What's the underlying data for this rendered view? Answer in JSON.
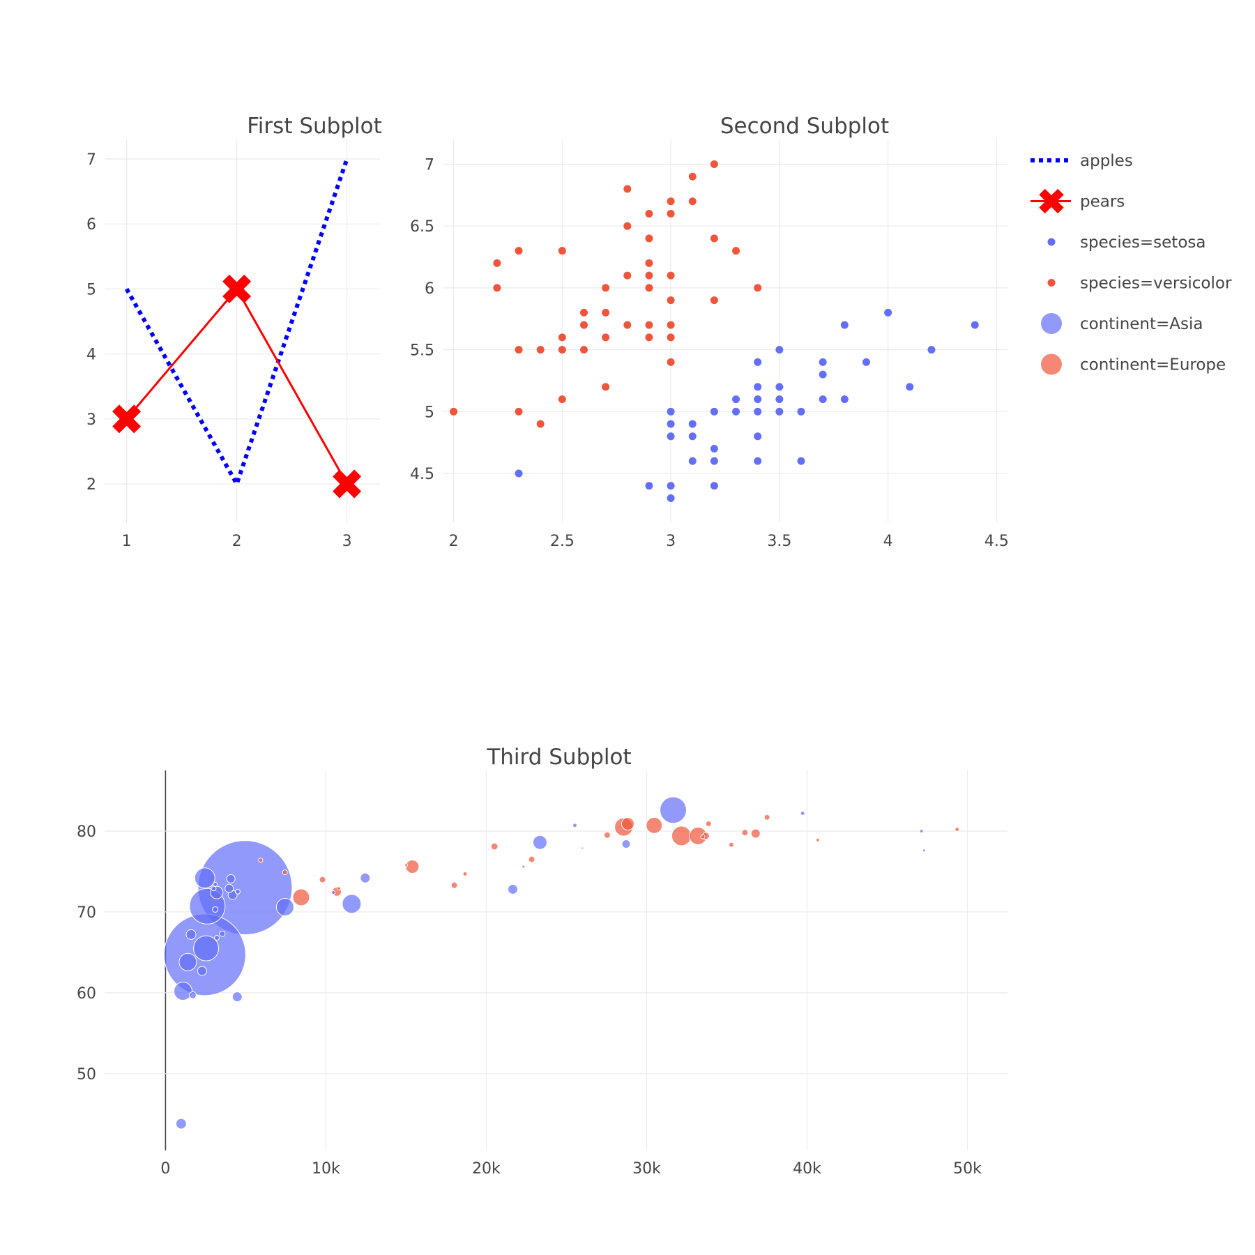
{
  "colors": {
    "apples": "#0000ff",
    "pears": "#ff0000",
    "setosa": "#636efa",
    "versicolor": "#ef553b",
    "asia": "#636efa",
    "europe": "#ef553b"
  },
  "legend": [
    {
      "label": "apples",
      "symbol": "dotted-line",
      "color": "#0000ff"
    },
    {
      "label": "pears",
      "symbol": "line-x",
      "color": "#ff0000"
    },
    {
      "label": "species=setosa",
      "symbol": "dot",
      "color": "#636efa"
    },
    {
      "label": "species=versicolor",
      "symbol": "dot",
      "color": "#ef553b"
    },
    {
      "label": "continent=Asia",
      "symbol": "bubble",
      "color": "#636efa"
    },
    {
      "label": "continent=Europe",
      "symbol": "bubble",
      "color": "#ef553b"
    }
  ],
  "chart_data": [
    {
      "type": "line",
      "title": "First Subplot",
      "xlim": [
        0.8,
        3.3
      ],
      "ylim": [
        1.4,
        7.3
      ],
      "xticks": [
        1,
        2,
        3
      ],
      "yticks": [
        2,
        3,
        4,
        5,
        6,
        7
      ],
      "grid": true,
      "series": [
        {
          "name": "apples",
          "x": [
            1,
            2,
            3
          ],
          "y": [
            5,
            2,
            7
          ],
          "line": "dotted",
          "color": "#0000ff"
        },
        {
          "name": "pears",
          "x": [
            1,
            2,
            3
          ],
          "y": [
            3,
            5,
            2
          ],
          "line": "solid",
          "marker": "x",
          "color": "#ff0000"
        }
      ]
    },
    {
      "type": "scatter",
      "title": "Second Subplot",
      "xlim": [
        1.95,
        4.55
      ],
      "ylim": [
        4.1,
        7.2
      ],
      "xticks": [
        2,
        2.5,
        3,
        3.5,
        4,
        4.5
      ],
      "ytick_labels": [
        "4.5",
        "5",
        "5.5",
        "6",
        "6.5",
        "7"
      ],
      "yticks": [
        4.5,
        5,
        5.5,
        6,
        6.5,
        7
      ],
      "grid": true,
      "series": [
        {
          "name": "species=setosa",
          "color": "#636efa",
          "points": [
            [
              3.5,
              5.5
            ],
            [
              3.4,
              5.4
            ],
            [
              3.4,
              5.2
            ],
            [
              3.5,
              5.2
            ],
            [
              3.4,
              5.1
            ],
            [
              3.5,
              5.1
            ],
            [
              3.3,
              5.1
            ],
            [
              3.7,
              5.4
            ],
            [
              3.7,
              5.3
            ],
            [
              3.7,
              5.1
            ],
            [
              3.8,
              5.1
            ],
            [
              3.8,
              5.7
            ],
            [
              4.0,
              5.8
            ],
            [
              3.9,
              5.4
            ],
            [
              4.1,
              5.2
            ],
            [
              4.2,
              5.5
            ],
            [
              4.4,
              5.7
            ],
            [
              3.0,
              5.0
            ],
            [
              3.2,
              5.0
            ],
            [
              3.3,
              5.0
            ],
            [
              3.4,
              5.0
            ],
            [
              3.5,
              5.0
            ],
            [
              3.6,
              5.0
            ],
            [
              3.0,
              4.9
            ],
            [
              3.1,
              4.9
            ],
            [
              3.0,
              4.8
            ],
            [
              3.1,
              4.8
            ],
            [
              3.4,
              4.8
            ],
            [
              3.2,
              4.7
            ],
            [
              3.1,
              4.6
            ],
            [
              3.2,
              4.6
            ],
            [
              3.4,
              4.6
            ],
            [
              3.6,
              4.6
            ],
            [
              3.2,
              4.4
            ],
            [
              2.9,
              4.4
            ],
            [
              3.0,
              4.4
            ],
            [
              3.0,
              4.3
            ],
            [
              2.3,
              4.5
            ]
          ]
        },
        {
          "name": "species=versicolor",
          "color": "#ef553b",
          "points": [
            [
              3.2,
              7.0
            ],
            [
              3.1,
              6.9
            ],
            [
              3.0,
              6.7
            ],
            [
              3.1,
              6.7
            ],
            [
              2.8,
              6.8
            ],
            [
              2.9,
              6.6
            ],
            [
              3.0,
              6.6
            ],
            [
              2.8,
              6.5
            ],
            [
              2.9,
              6.4
            ],
            [
              3.2,
              6.4
            ],
            [
              3.3,
              6.3
            ],
            [
              2.3,
              6.3
            ],
            [
              2.5,
              6.3
            ],
            [
              2.2,
              6.2
            ],
            [
              2.9,
              6.2
            ],
            [
              2.8,
              6.1
            ],
            [
              2.9,
              6.1
            ],
            [
              3.0,
              6.1
            ],
            [
              2.2,
              6.0
            ],
            [
              2.7,
              6.0
            ],
            [
              2.9,
              6.0
            ],
            [
              3.4,
              6.0
            ],
            [
              3.0,
              5.9
            ],
            [
              3.2,
              5.9
            ],
            [
              2.6,
              5.8
            ],
            [
              2.7,
              5.8
            ],
            [
              2.6,
              5.7
            ],
            [
              2.8,
              5.7
            ],
            [
              2.9,
              5.7
            ],
            [
              3.0,
              5.7
            ],
            [
              2.5,
              5.6
            ],
            [
              2.7,
              5.6
            ],
            [
              2.9,
              5.6
            ],
            [
              3.0,
              5.6
            ],
            [
              2.3,
              5.5
            ],
            [
              2.4,
              5.5
            ],
            [
              2.5,
              5.5
            ],
            [
              2.6,
              5.5
            ],
            [
              3.0,
              5.4
            ],
            [
              2.7,
              5.2
            ],
            [
              2.5,
              5.1
            ],
            [
              2.0,
              5.0
            ],
            [
              2.3,
              5.0
            ],
            [
              2.4,
              4.9
            ]
          ]
        }
      ]
    },
    {
      "type": "scatter",
      "title": "Third Subplot",
      "xlim": [
        -3800,
        52500
      ],
      "ylim": [
        40.5,
        87.5
      ],
      "xticks": [
        0,
        10000,
        20000,
        30000,
        40000,
        50000
      ],
      "xtick_labels": [
        "0",
        "10k",
        "20k",
        "30k",
        "40k",
        "50k"
      ],
      "yticks": [
        50,
        60,
        70,
        80
      ],
      "grid": true,
      "series": [
        {
          "name": "continent=Asia",
          "color": "#636efa",
          "points": [
            [
              4959,
              73.0,
              135
            ],
            [
              2452,
              64.7,
              117
            ],
            [
              31656,
              82.6,
              38
            ],
            [
              1091,
              60.2,
              26
            ],
            [
              2605,
              70.7,
              51
            ],
            [
              2451,
              74.2,
              29
            ],
            [
              1391,
              63.8,
              25
            ],
            [
              2529,
              65.5,
              36
            ],
            [
              11606,
              71.0,
              27
            ],
            [
              7458,
              70.6,
              25
            ],
            [
              4471,
              59.5,
              14
            ],
            [
              975,
              43.8,
              15
            ],
            [
              1593,
              67.2,
              14
            ],
            [
              23348,
              78.6,
              20
            ],
            [
              3190,
              72.4,
              18
            ],
            [
              4185,
              72.1,
              13
            ],
            [
              3970,
              72.9,
              12
            ],
            [
              4073,
              74.1,
              12
            ],
            [
              12452,
              74.2,
              14
            ],
            [
              28718,
              78.4,
              12
            ],
            [
              21655,
              72.8,
              14
            ],
            [
              1700,
              59.7,
              10
            ],
            [
              2280,
              62.7,
              13
            ],
            [
              3540,
              67.3,
              8
            ],
            [
              3100,
              70.3,
              8
            ],
            [
              3000,
              72.9,
              7
            ],
            [
              4500,
              72.5,
              7
            ],
            [
              3095,
              73.4,
              6
            ],
            [
              3200,
              66.8,
              7
            ],
            [
              25523,
              80.7,
              6
            ],
            [
              22316,
              75.6,
              4
            ],
            [
              47143,
              80.0,
              5
            ],
            [
              39725,
              82.2,
              6
            ],
            [
              47307,
              77.6,
              4
            ],
            [
              10461,
              72.4,
              5
            ],
            [
              9253,
              74.5,
              2
            ],
            [
              29796,
              75.6,
              2
            ]
          ]
        },
        {
          "name": "continent=Europe",
          "color": "#ef553b",
          "points": [
            [
              5937,
              76.4,
              6
            ],
            [
              7446,
              74.9,
              7
            ],
            [
              8458,
              71.8,
              24
            ],
            [
              9786,
              74.0,
              9
            ],
            [
              10681,
              72.5,
              13
            ],
            [
              15390,
              75.6,
              19
            ],
            [
              18009,
              73.3,
              9
            ],
            [
              18678,
              74.7,
              6
            ],
            [
              20510,
              78.1,
              10
            ],
            [
              22833,
              76.5,
              9
            ],
            [
              26000,
              77.9,
              3
            ],
            [
              27538,
              79.5,
              9
            ],
            [
              28569,
              80.5,
              26
            ],
            [
              28828,
              80.9,
              18
            ],
            [
              30470,
              80.7,
              23
            ],
            [
              32170,
              79.4,
              28
            ],
            [
              33207,
              79.4,
              25
            ],
            [
              33693,
              79.4,
              10
            ],
            [
              33860,
              80.9,
              8
            ],
            [
              35278,
              78.3,
              7
            ],
            [
              36126,
              79.8,
              9
            ],
            [
              36798,
              79.7,
              13
            ],
            [
              37506,
              81.7,
              8
            ],
            [
              40676,
              78.9,
              5
            ],
            [
              49357,
              80.2,
              6
            ],
            [
              15000,
              75.8,
              4
            ],
            [
              10800,
              72.9,
              5
            ],
            [
              33500,
              79.3,
              6
            ]
          ]
        }
      ]
    }
  ]
}
